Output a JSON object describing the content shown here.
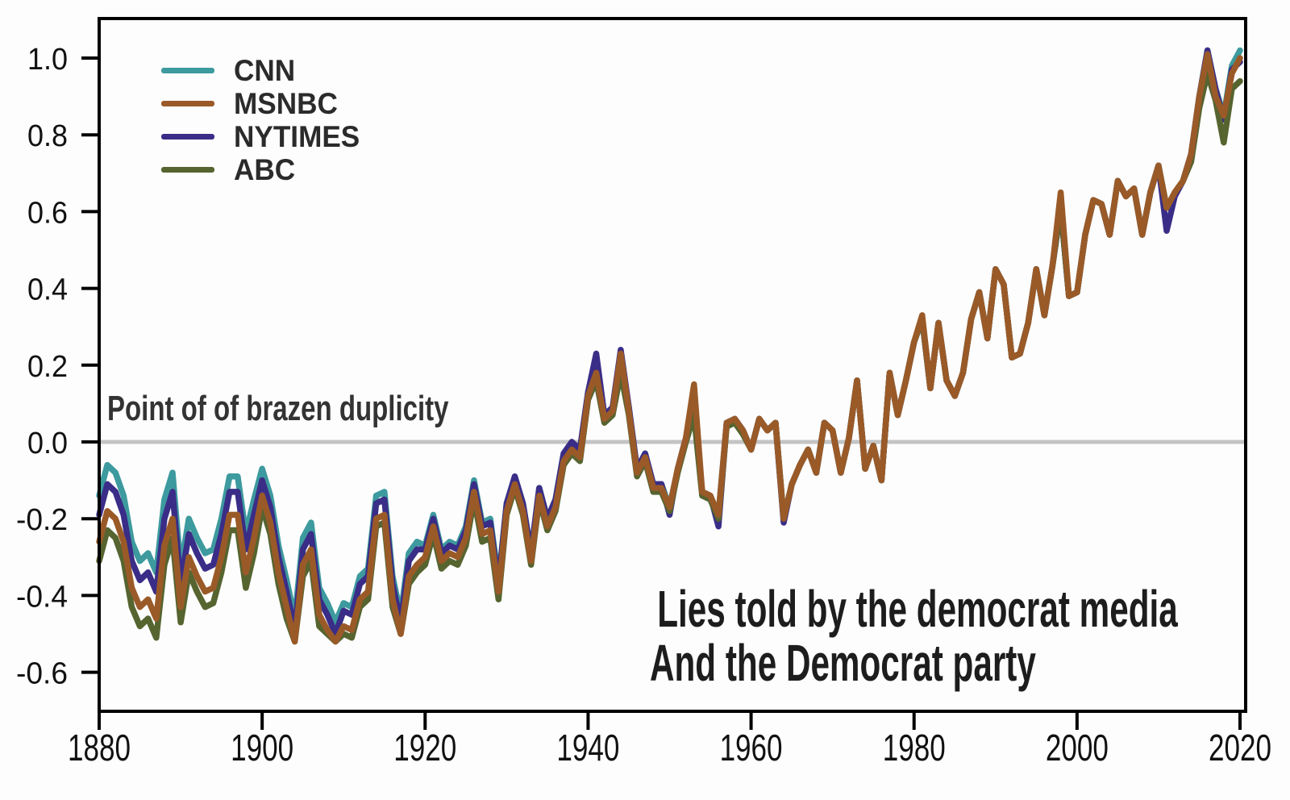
{
  "chart_data": {
    "type": "line",
    "title": "",
    "xlabel": "",
    "ylabel": "",
    "grid": false,
    "legend_position": "top-left",
    "x_ticks": [
      "1880",
      "1900",
      "1920",
      "1940",
      "1960",
      "1980",
      "2000",
      "2020"
    ],
    "y_ticks": [
      "1.0",
      "0.8",
      "0.6",
      "0.4",
      "0.2",
      "0.0",
      "-0.2",
      "-0.4",
      "-0.6"
    ],
    "xlim": [
      1878,
      2021
    ],
    "ylim": [
      -0.74,
      1.1
    ],
    "years": {
      "start": 1880,
      "end": 2020,
      "step": 1
    },
    "zero_line": {
      "value": 0.0,
      "color": "#c4c4c4"
    },
    "axis_color": "#000000",
    "series": [
      {
        "name": "CNN",
        "color": "#3d9a9e",
        "values": [
          -0.14,
          -0.06,
          -0.08,
          -0.14,
          -0.26,
          -0.31,
          -0.29,
          -0.34,
          -0.15,
          -0.08,
          -0.33,
          -0.2,
          -0.25,
          -0.29,
          -0.28,
          -0.2,
          -0.09,
          -0.09,
          -0.24,
          -0.15,
          -0.07,
          -0.14,
          -0.27,
          -0.36,
          -0.46,
          -0.25,
          -0.21,
          -0.38,
          -0.42,
          -0.47,
          -0.42,
          -0.43,
          -0.35,
          -0.33,
          -0.14,
          -0.13,
          -0.35,
          -0.45,
          -0.29,
          -0.26,
          -0.27,
          -0.19,
          -0.28,
          -0.26,
          -0.27,
          -0.22,
          -0.1,
          -0.21,
          -0.2,
          -0.36,
          -0.16,
          -0.09,
          -0.16,
          -0.29,
          -0.12,
          -0.2,
          -0.15,
          -0.03,
          0.0,
          -0.02,
          0.13,
          0.19,
          0.07,
          0.09,
          0.2,
          0.09,
          -0.07,
          -0.03,
          -0.11,
          -0.11,
          -0.17,
          -0.07,
          0.01,
          0.08,
          -0.13,
          -0.14,
          -0.19,
          0.05,
          0.06,
          0.03,
          -0.02,
          0.06,
          0.03,
          0.05,
          -0.2,
          -0.11,
          -0.06,
          -0.02,
          -0.08,
          0.05,
          0.03,
          -0.08,
          0.01,
          0.16,
          -0.07,
          -0.01,
          -0.1,
          0.18,
          0.07,
          0.16,
          0.26,
          0.32,
          0.14,
          0.31,
          0.16,
          0.12,
          0.18,
          0.32,
          0.39,
          0.27,
          0.45,
          0.41,
          0.22,
          0.23,
          0.31,
          0.45,
          0.33,
          0.46,
          0.61,
          0.38,
          0.39,
          0.54,
          0.63,
          0.62,
          0.54,
          0.68,
          0.64,
          0.66,
          0.54,
          0.65,
          0.72,
          0.61,
          0.65,
          0.68,
          0.75,
          0.9,
          1.02,
          0.92,
          0.85,
          0.98,
          1.02
        ]
      },
      {
        "name": "MSNBC",
        "color": "#9a5a28",
        "values": [
          -0.26,
          -0.18,
          -0.2,
          -0.26,
          -0.38,
          -0.43,
          -0.41,
          -0.46,
          -0.27,
          -0.2,
          -0.43,
          -0.3,
          -0.35,
          -0.39,
          -0.38,
          -0.3,
          -0.19,
          -0.19,
          -0.34,
          -0.25,
          -0.14,
          -0.21,
          -0.34,
          -0.43,
          -0.52,
          -0.32,
          -0.28,
          -0.45,
          -0.49,
          -0.52,
          -0.48,
          -0.49,
          -0.41,
          -0.39,
          -0.2,
          -0.19,
          -0.41,
          -0.5,
          -0.35,
          -0.32,
          -0.3,
          -0.22,
          -0.31,
          -0.29,
          -0.3,
          -0.25,
          -0.13,
          -0.24,
          -0.23,
          -0.39,
          -0.18,
          -0.11,
          -0.18,
          -0.31,
          -0.14,
          -0.22,
          -0.17,
          -0.05,
          -0.02,
          -0.04,
          0.12,
          0.18,
          0.06,
          0.08,
          0.23,
          0.08,
          -0.08,
          -0.04,
          -0.12,
          -0.12,
          -0.17,
          -0.07,
          0.01,
          0.15,
          -0.13,
          -0.14,
          -0.19,
          0.05,
          0.06,
          0.03,
          -0.02,
          0.06,
          0.03,
          0.05,
          -0.2,
          -0.11,
          -0.06,
          -0.02,
          -0.08,
          0.05,
          0.03,
          -0.08,
          0.01,
          0.16,
          -0.07,
          -0.01,
          -0.1,
          0.18,
          0.07,
          0.16,
          0.26,
          0.33,
          0.14,
          0.31,
          0.16,
          0.12,
          0.18,
          0.32,
          0.39,
          0.27,
          0.45,
          0.41,
          0.22,
          0.23,
          0.31,
          0.45,
          0.33,
          0.46,
          0.65,
          0.38,
          0.39,
          0.54,
          0.63,
          0.62,
          0.54,
          0.68,
          0.64,
          0.66,
          0.54,
          0.65,
          0.72,
          0.61,
          0.65,
          0.68,
          0.75,
          0.9,
          1.01,
          0.9,
          0.85,
          0.96,
          1.0
        ]
      },
      {
        "name": "NYTIMES",
        "color": "#3a2d87",
        "values": [
          -0.19,
          -0.11,
          -0.13,
          -0.19,
          -0.31,
          -0.36,
          -0.34,
          -0.39,
          -0.2,
          -0.13,
          -0.37,
          -0.24,
          -0.29,
          -0.33,
          -0.32,
          -0.24,
          -0.13,
          -0.13,
          -0.28,
          -0.19,
          -0.1,
          -0.17,
          -0.3,
          -0.39,
          -0.49,
          -0.28,
          -0.24,
          -0.41,
          -0.45,
          -0.5,
          -0.44,
          -0.45,
          -0.37,
          -0.35,
          -0.16,
          -0.15,
          -0.37,
          -0.47,
          -0.31,
          -0.28,
          -0.28,
          -0.2,
          -0.29,
          -0.27,
          -0.28,
          -0.23,
          -0.11,
          -0.22,
          -0.21,
          -0.37,
          -0.16,
          -0.09,
          -0.16,
          -0.29,
          -0.12,
          -0.2,
          -0.15,
          -0.03,
          0.0,
          -0.02,
          0.13,
          0.23,
          0.07,
          0.09,
          0.24,
          0.09,
          -0.07,
          -0.03,
          -0.11,
          -0.11,
          -0.19,
          -0.07,
          0.01,
          0.1,
          -0.13,
          -0.14,
          -0.22,
          0.05,
          0.06,
          0.03,
          -0.02,
          0.06,
          0.03,
          0.05,
          -0.21,
          -0.11,
          -0.06,
          -0.02,
          -0.08,
          0.05,
          0.03,
          -0.08,
          0.01,
          0.16,
          -0.07,
          -0.01,
          -0.1,
          0.18,
          0.07,
          0.16,
          0.26,
          0.32,
          0.14,
          0.31,
          0.16,
          0.12,
          0.18,
          0.32,
          0.39,
          0.27,
          0.45,
          0.41,
          0.22,
          0.23,
          0.31,
          0.45,
          0.33,
          0.46,
          0.61,
          0.38,
          0.39,
          0.54,
          0.63,
          0.62,
          0.54,
          0.68,
          0.64,
          0.66,
          0.54,
          0.65,
          0.72,
          0.55,
          0.64,
          0.68,
          0.75,
          0.9,
          1.02,
          0.92,
          0.84,
          0.97,
          0.99
        ]
      },
      {
        "name": "ABC",
        "color": "#566430",
        "values": [
          -0.31,
          -0.23,
          -0.25,
          -0.31,
          -0.43,
          -0.48,
          -0.46,
          -0.51,
          -0.32,
          -0.25,
          -0.47,
          -0.34,
          -0.39,
          -0.43,
          -0.42,
          -0.34,
          -0.23,
          -0.23,
          -0.38,
          -0.29,
          -0.17,
          -0.24,
          -0.37,
          -0.46,
          -0.52,
          -0.35,
          -0.31,
          -0.48,
          -0.5,
          -0.52,
          -0.5,
          -0.51,
          -0.43,
          -0.41,
          -0.22,
          -0.21,
          -0.43,
          -0.5,
          -0.37,
          -0.34,
          -0.32,
          -0.24,
          -0.33,
          -0.31,
          -0.32,
          -0.27,
          -0.15,
          -0.26,
          -0.25,
          -0.41,
          -0.19,
          -0.12,
          -0.19,
          -0.32,
          -0.15,
          -0.23,
          -0.18,
          -0.06,
          -0.03,
          -0.05,
          0.11,
          0.16,
          0.05,
          0.07,
          0.18,
          0.07,
          -0.09,
          -0.05,
          -0.13,
          -0.13,
          -0.18,
          -0.08,
          0.0,
          0.07,
          -0.14,
          -0.15,
          -0.2,
          0.04,
          0.05,
          0.02,
          -0.02,
          0.06,
          0.03,
          0.05,
          -0.2,
          -0.11,
          -0.06,
          -0.02,
          -0.08,
          0.05,
          0.03,
          -0.08,
          0.01,
          0.16,
          -0.07,
          -0.01,
          -0.1,
          0.18,
          0.07,
          0.16,
          0.26,
          0.32,
          0.14,
          0.31,
          0.16,
          0.12,
          0.18,
          0.32,
          0.39,
          0.27,
          0.45,
          0.41,
          0.22,
          0.23,
          0.31,
          0.45,
          0.33,
          0.46,
          0.61,
          0.38,
          0.39,
          0.54,
          0.63,
          0.62,
          0.54,
          0.68,
          0.64,
          0.66,
          0.54,
          0.65,
          0.72,
          0.61,
          0.65,
          0.68,
          0.73,
          0.87,
          0.96,
          0.89,
          0.78,
          0.92,
          0.94
        ]
      }
    ]
  },
  "annotations": {
    "zero_line_label": "Point of of brazen duplicity",
    "caption_line1": "Lies told by the democrat media",
    "caption_line2": "And the Democrat party"
  }
}
